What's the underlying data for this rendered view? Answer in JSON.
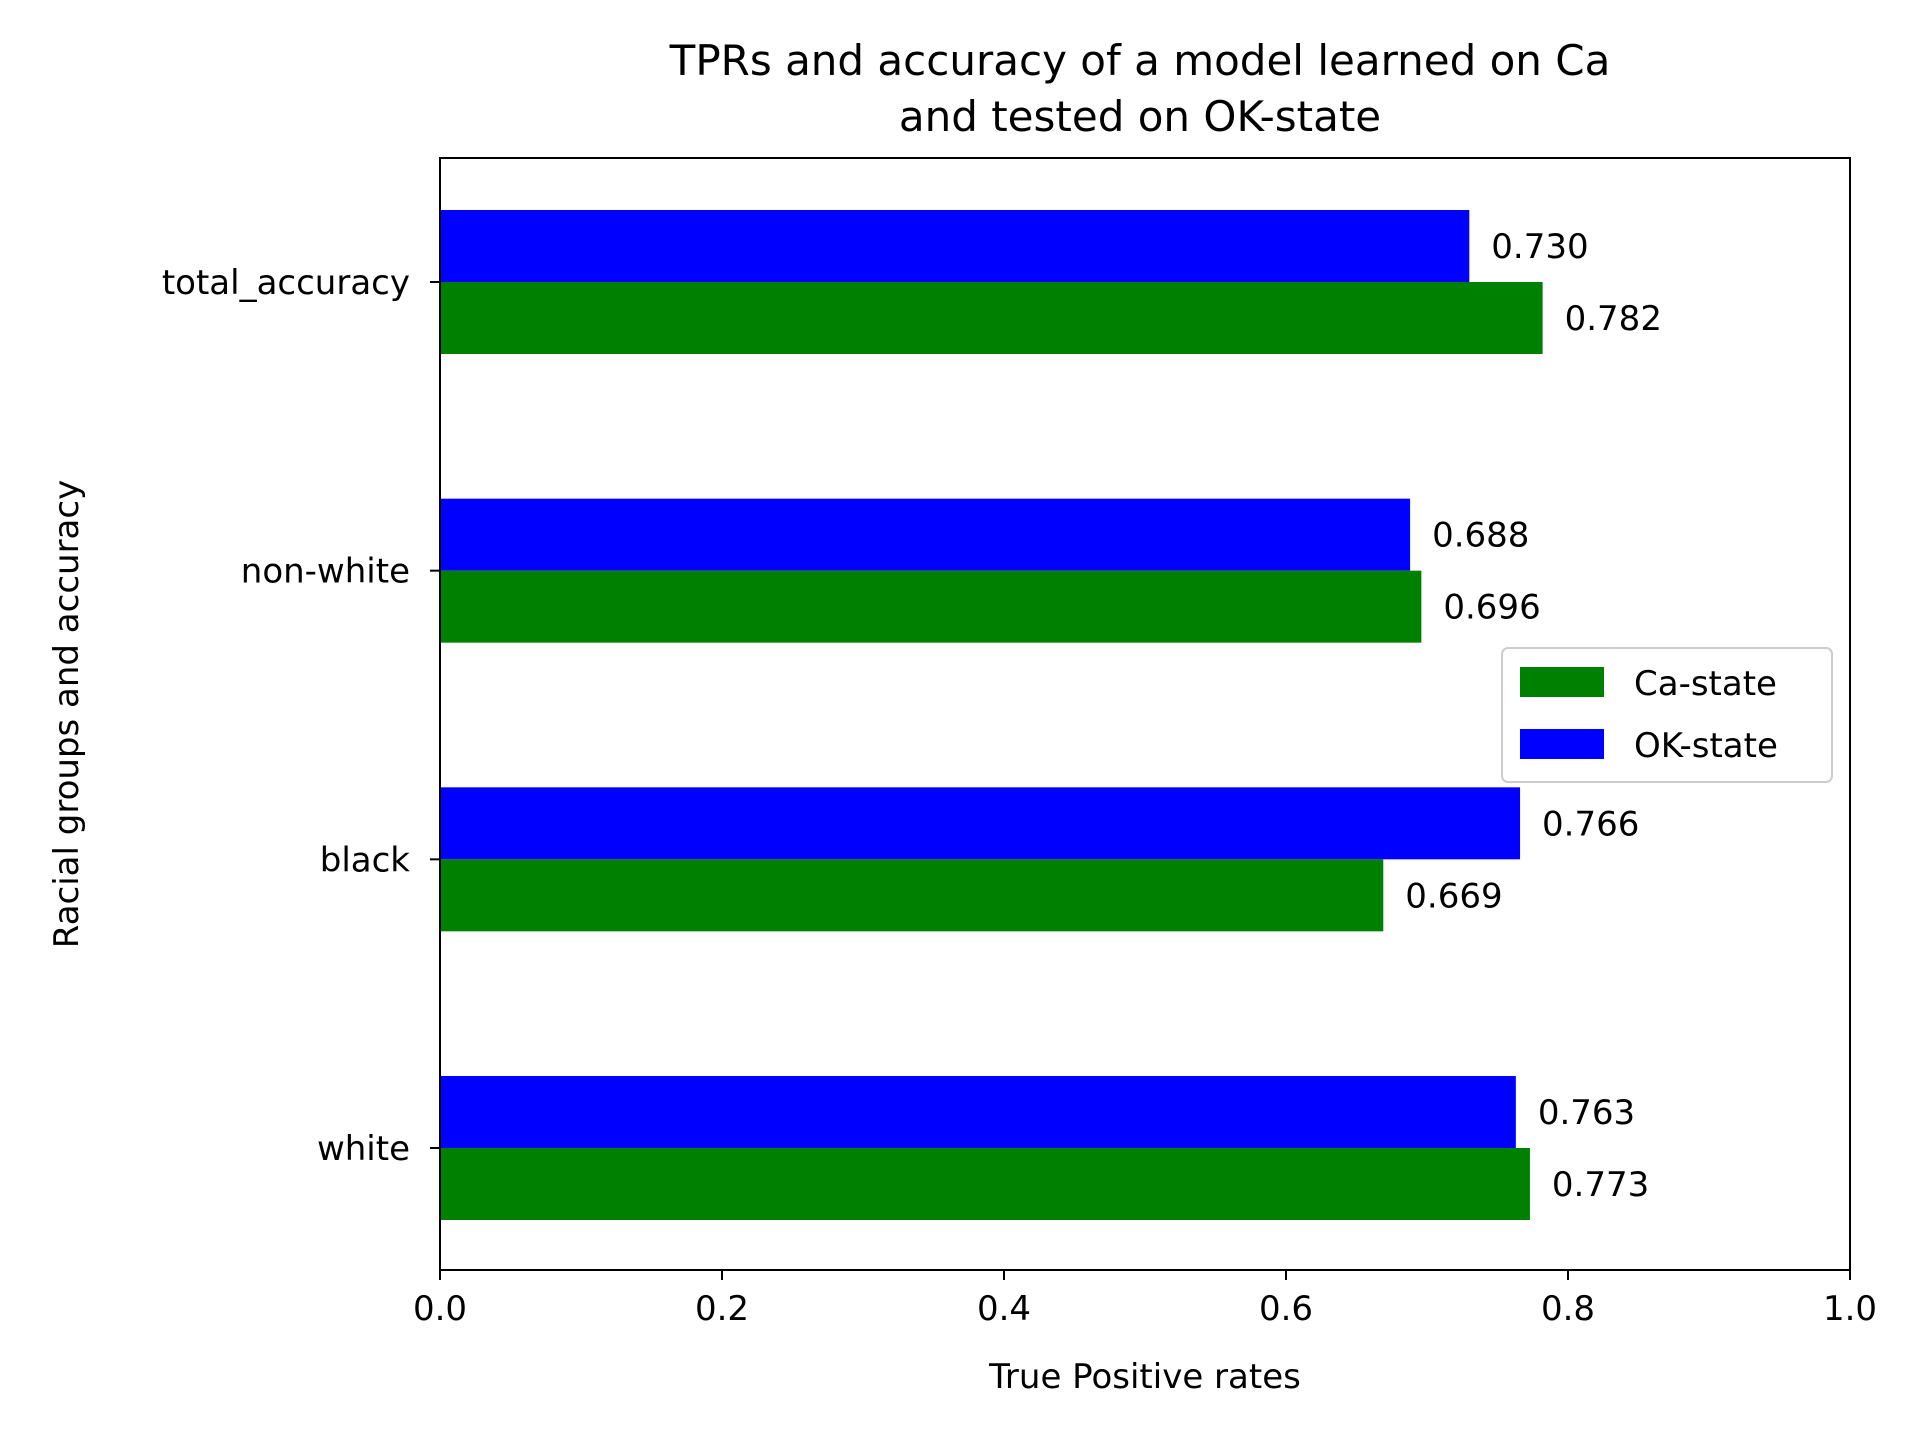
{
  "chart_data": {
    "type": "bar",
    "orientation": "horizontal",
    "title_lines": [
      "TPRs and accuracy of a model learned on Ca",
      "and tested on OK-state"
    ],
    "xlabel": "True Positive rates",
    "ylabel": "Racial groups and accuracy",
    "xlim": [
      0,
      1.0
    ],
    "xticks": [
      "0.0",
      "0.2",
      "0.4",
      "0.6",
      "0.8",
      "1.0"
    ],
    "categories": [
      "white",
      "black",
      "non-white",
      "total_accuracy"
    ],
    "series": [
      {
        "name": "Ca-state",
        "color": "#008000",
        "values": [
          0.773,
          0.669,
          0.696,
          0.782
        ],
        "labels": [
          "0.773",
          "0.669",
          "0.696",
          "0.782"
        ]
      },
      {
        "name": "OK-state",
        "color": "#0000ff",
        "values": [
          0.763,
          0.766,
          0.688,
          0.73
        ],
        "labels": [
          "0.763",
          "0.766",
          "0.688",
          "0.730"
        ]
      }
    ],
    "legend_position": "center-right",
    "grid": false
  }
}
